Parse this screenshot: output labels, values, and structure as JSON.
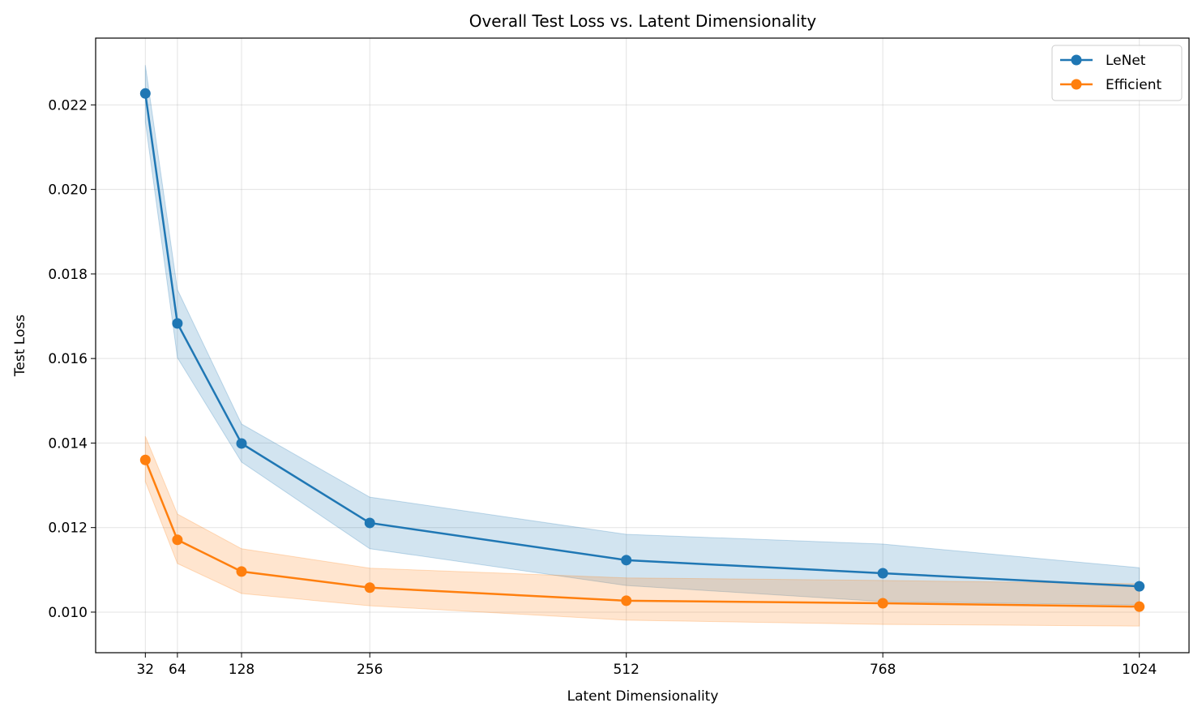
{
  "chart_data": {
    "type": "line",
    "title": "Overall Test Loss vs. Latent Dimensionality",
    "xlabel": "Latent Dimensionality",
    "ylabel": "Test Loss",
    "x": [
      32,
      64,
      128,
      256,
      512,
      768,
      1024
    ],
    "xticks": [
      "32",
      "64",
      "128",
      "256",
      "512",
      "768",
      "1024"
    ],
    "yticks": [
      "0.010",
      "0.012",
      "0.014",
      "0.016",
      "0.018",
      "0.020",
      "0.022"
    ],
    "ytick_values": [
      0.01,
      0.012,
      0.014,
      0.016,
      0.018,
      0.02,
      0.022
    ],
    "xlim": [
      -17.6,
      1073.6
    ],
    "ylim": [
      0.00904,
      0.02358
    ],
    "grid": true,
    "legend_position": "top-right",
    "series": [
      {
        "name": "LeNet",
        "color": "#1f77b4",
        "values": [
          0.02227,
          0.01683,
          0.01399,
          0.01211,
          0.01123,
          0.01092,
          0.01061
        ],
        "upper": [
          0.02294,
          0.01763,
          0.01445,
          0.01272,
          0.01184,
          0.01161,
          0.01105
        ],
        "lower": [
          0.0216,
          0.01602,
          0.01355,
          0.0115,
          0.01063,
          0.01025,
          0.01017
        ]
      },
      {
        "name": "Efficient",
        "color": "#ff7f0e",
        "values": [
          0.0136,
          0.01171,
          0.01096,
          0.01058,
          0.01027,
          0.01021,
          0.01013
        ],
        "upper": [
          0.01416,
          0.01232,
          0.0115,
          0.01104,
          0.01081,
          0.01075,
          0.01067
        ],
        "lower": [
          0.01309,
          0.01115,
          0.01044,
          0.01015,
          0.00981,
          0.00971,
          0.00967
        ]
      }
    ]
  }
}
